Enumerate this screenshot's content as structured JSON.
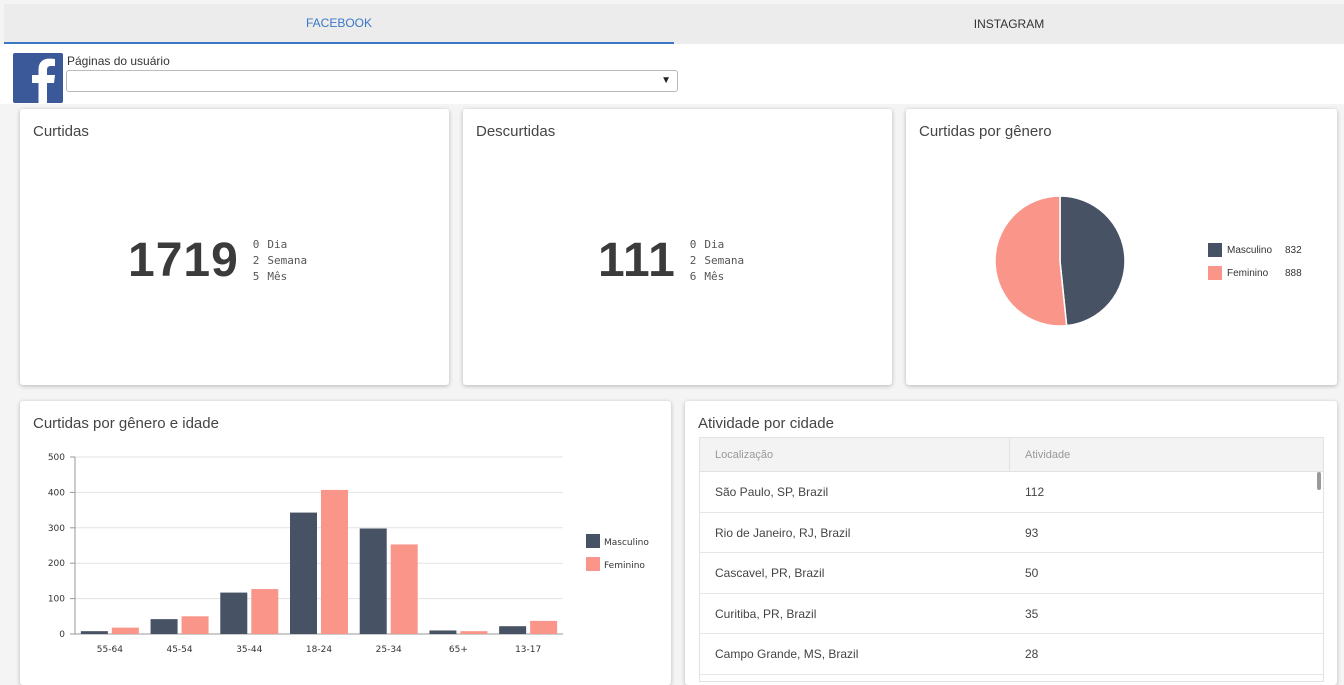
{
  "tabs": [
    {
      "label": "FACEBOOK",
      "active": true
    },
    {
      "label": "INSTAGRAM",
      "active": false
    }
  ],
  "page_selector": {
    "label": "Páginas do usuário",
    "value": ""
  },
  "curtidas": {
    "title": "Curtidas",
    "total": "1719",
    "stats": [
      {
        "value": "0",
        "label": "Dia"
      },
      {
        "value": "2",
        "label": "Semana"
      },
      {
        "value": "5",
        "label": "Mês"
      }
    ]
  },
  "descurtidas": {
    "title": "Descurtidas",
    "total": "111",
    "stats": [
      {
        "value": "0",
        "label": "Dia"
      },
      {
        "value": "2",
        "label": "Semana"
      },
      {
        "value": "6",
        "label": "Mês"
      }
    ]
  },
  "genero": {
    "title": "Curtidas por gênero",
    "legend": [
      {
        "name": "Masculino",
        "value": "832"
      },
      {
        "name": "Feminino",
        "value": "888"
      }
    ]
  },
  "idade": {
    "title": "Curtidas por gênero e idade"
  },
  "cidades": {
    "title": "Atividade por cidade",
    "columns": [
      "Localização",
      "Atividade"
    ],
    "rows": [
      {
        "city": "São Paulo, SP, Brazil",
        "activity": "112"
      },
      {
        "city": "Rio de Janeiro, RJ, Brazil",
        "activity": "93"
      },
      {
        "city": "Cascavel, PR, Brazil",
        "activity": "50"
      },
      {
        "city": "Curitiba, PR, Brazil",
        "activity": "35"
      },
      {
        "city": "Campo Grande, MS, Brazil",
        "activity": "28"
      }
    ]
  },
  "colors": {
    "masculino": "#475264",
    "feminino": "#fa958a",
    "accent": "#3a78c6",
    "facebook": "#3b5998"
  },
  "chart_data": [
    {
      "type": "pie",
      "title": "Curtidas por gênero",
      "labels": [
        "Masculino",
        "Feminino"
      ],
      "values": [
        832,
        888
      ]
    },
    {
      "type": "bar",
      "title": "Curtidas por gênero e idade",
      "categories": [
        "55-64",
        "45-54",
        "35-44",
        "18-24",
        "25-34",
        "65+",
        "13-17"
      ],
      "series": [
        {
          "name": "Masculino",
          "values": [
            8,
            42,
            117,
            343,
            298,
            10,
            22
          ]
        },
        {
          "name": "Feminino",
          "values": [
            18,
            50,
            127,
            407,
            253,
            8,
            37
          ]
        }
      ],
      "ylim": [
        0,
        500
      ],
      "yticks": [
        0,
        100,
        200,
        300,
        400,
        500
      ],
      "grid": true,
      "legend": "right"
    }
  ]
}
